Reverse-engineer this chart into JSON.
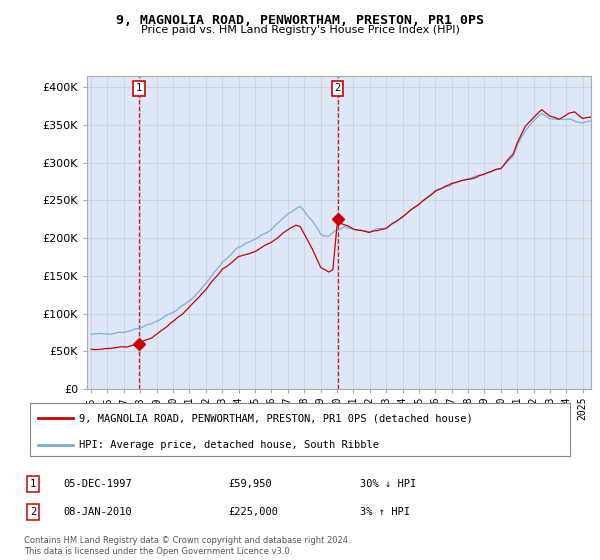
{
  "title": "9, MAGNOLIA ROAD, PENWORTHAM, PRESTON, PR1 0PS",
  "subtitle": "Price paid vs. HM Land Registry's House Price Index (HPI)",
  "ylabel_ticks": [
    "£0",
    "£50K",
    "£100K",
    "£150K",
    "£200K",
    "£250K",
    "£300K",
    "£350K",
    "£400K"
  ],
  "ytick_values": [
    0,
    50000,
    100000,
    150000,
    200000,
    250000,
    300000,
    350000,
    400000
  ],
  "ylim": [
    0,
    415000
  ],
  "xlim_start": 1994.75,
  "xlim_end": 2025.5,
  "xtick_years": [
    1995,
    1996,
    1997,
    1998,
    1999,
    2000,
    2001,
    2002,
    2003,
    2004,
    2005,
    2006,
    2007,
    2008,
    2009,
    2010,
    2011,
    2012,
    2013,
    2014,
    2015,
    2016,
    2017,
    2018,
    2019,
    2020,
    2021,
    2022,
    2023,
    2024,
    2025
  ],
  "marker1_x": 1997.917,
  "marker1_y": 59950,
  "marker1_label": "1",
  "marker1_date": "05-DEC-1997",
  "marker1_price": "£59,950",
  "marker1_hpi": "30% ↓ HPI",
  "marker2_x": 2010.04,
  "marker2_y": 225000,
  "marker2_label": "2",
  "marker2_date": "08-JAN-2010",
  "marker2_price": "£225,000",
  "marker2_hpi": "3% ↑ HPI",
  "sold_line_color": "#cc0000",
  "hpi_line_color": "#7ab0d4",
  "grid_color": "#cccccc",
  "background_color": "#dce8f8",
  "plot_bg": "#ffffff",
  "legend_label_sold": "9, MAGNOLIA ROAD, PENWORTHAM, PRESTON, PR1 0PS (detached house)",
  "legend_label_hpi": "HPI: Average price, detached house, South Ribble",
  "footer": "Contains HM Land Registry data © Crown copyright and database right 2024.\nThis data is licensed under the Open Government Licence v3.0."
}
